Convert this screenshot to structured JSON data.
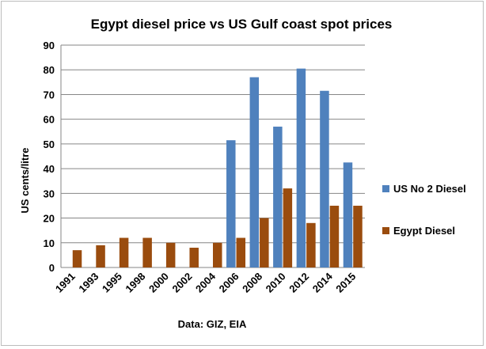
{
  "chart_data": {
    "type": "bar",
    "title": "Egypt diesel price vs US Gulf coast spot prices",
    "ylabel": "US cents/litre",
    "xlabel": "Data: GIZ, EIA",
    "ylim": [
      0,
      90
    ],
    "yticks": [
      0,
      10,
      20,
      30,
      40,
      50,
      60,
      70,
      80,
      90
    ],
    "grid": true,
    "legend_position": "right",
    "categories": [
      "1991",
      "1993",
      "1995",
      "1998",
      "2000",
      "2002",
      "2004",
      "2006",
      "2008",
      "2010",
      "2012",
      "2014",
      "2015"
    ],
    "series": [
      {
        "name": "US No 2 Diesel",
        "color": "#4f81bd",
        "values": [
          null,
          null,
          null,
          null,
          null,
          null,
          null,
          51.5,
          77,
          57,
          80.5,
          71.5,
          42.5
        ]
      },
      {
        "name": "Egypt Diesel",
        "color": "#9a4c0e",
        "values": [
          7,
          9,
          12,
          12,
          10,
          8,
          10,
          12,
          20,
          32,
          18,
          25,
          25
        ]
      }
    ]
  }
}
